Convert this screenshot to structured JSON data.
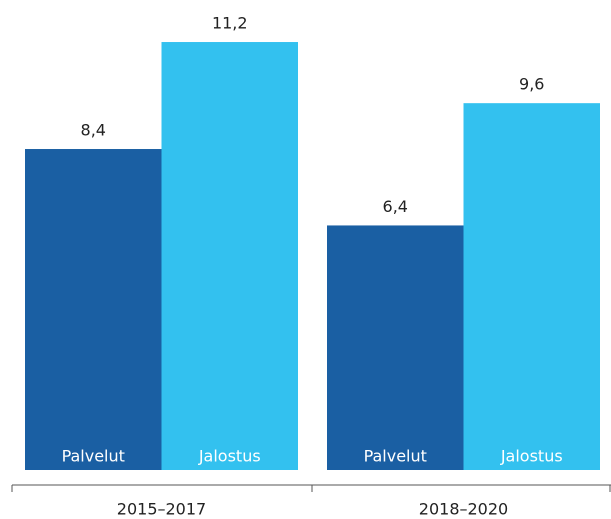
{
  "chart_data": {
    "type": "bar",
    "categories": [
      "2015–2017",
      "2018–2020"
    ],
    "series": [
      {
        "name": "Palvelut",
        "color": "#1a5fa3",
        "values": [
          8.4,
          6.4
        ],
        "value_labels": [
          "8,4",
          "6,4"
        ]
      },
      {
        "name": "Jalostus",
        "color": "#33c1ef",
        "values": [
          11.2,
          9.6
        ],
        "value_labels": [
          "11,2",
          "9,6"
        ]
      }
    ],
    "ylim": [
      0,
      12.3
    ]
  }
}
